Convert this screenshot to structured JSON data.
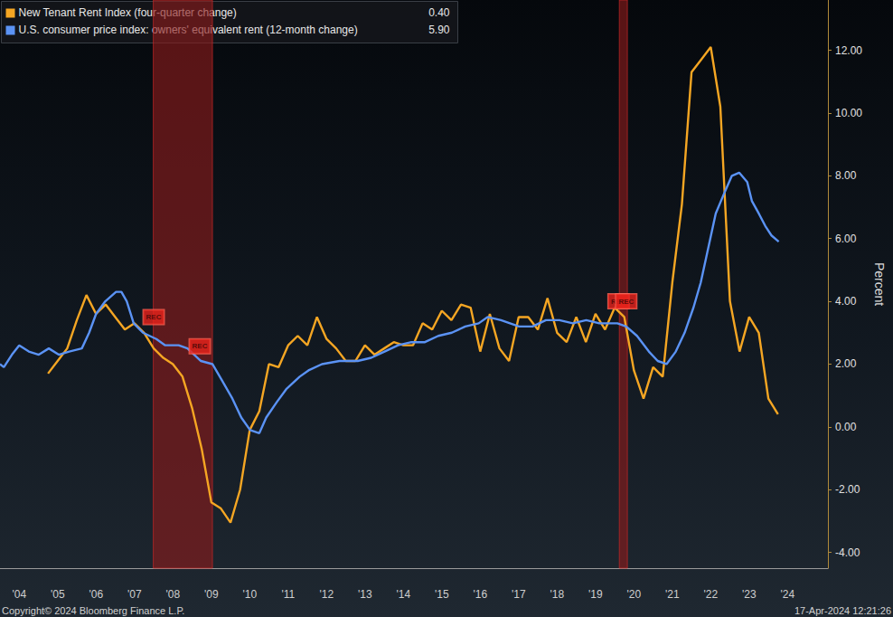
{
  "chart_data": {
    "type": "line",
    "series": [
      {
        "name": "New Tenant Rent Index (four-quarter change)",
        "color": "#f5a623",
        "legend_value": {
          "value": 0.4,
          "label": "0.40"
        },
        "x": [
          2005.25,
          2005.5,
          2005.75,
          2006.0,
          2006.25,
          2006.5,
          2006.75,
          2007.0,
          2007.25,
          2007.5,
          2007.75,
          2008.0,
          2008.25,
          2008.5,
          2008.75,
          2009.0,
          2009.25,
          2009.5,
          2009.75,
          2010.0,
          2010.25,
          2010.5,
          2010.75,
          2011.0,
          2011.25,
          2011.5,
          2011.75,
          2012.0,
          2012.25,
          2012.5,
          2012.75,
          2013.0,
          2013.25,
          2013.5,
          2013.75,
          2014.0,
          2014.25,
          2014.5,
          2014.75,
          2015.0,
          2015.25,
          2015.5,
          2015.75,
          2016.0,
          2016.25,
          2016.5,
          2016.75,
          2017.0,
          2017.25,
          2017.5,
          2017.75,
          2018.0,
          2018.25,
          2018.5,
          2018.75,
          2019.0,
          2019.25,
          2019.5,
          2019.75,
          2020.0,
          2020.25,
          2020.5,
          2020.75,
          2021.0,
          2021.25,
          2021.5,
          2021.75,
          2022.0,
          2022.25,
          2022.5,
          2022.75,
          2023.0,
          2023.25,
          2023.5,
          2023.75,
          2024.0,
          2024.25
        ],
        "values": [
          1.7,
          2.1,
          2.5,
          3.4,
          4.2,
          3.6,
          3.9,
          3.5,
          3.1,
          3.3,
          3.0,
          2.5,
          2.2,
          2.0,
          1.6,
          0.6,
          -0.7,
          -2.4,
          -2.6,
          -3.05,
          -2.0,
          -0.1,
          0.5,
          2.0,
          1.9,
          2.6,
          2.9,
          2.6,
          3.5,
          2.8,
          2.5,
          2.1,
          2.1,
          2.6,
          2.3,
          2.5,
          2.7,
          2.6,
          2.6,
          3.3,
          3.1,
          3.7,
          3.4,
          3.9,
          3.8,
          2.4,
          3.6,
          2.5,
          2.1,
          3.5,
          3.5,
          3.1,
          4.1,
          3.0,
          2.7,
          3.5,
          2.7,
          3.6,
          3.1,
          3.8,
          3.5,
          1.8,
          0.9,
          1.9,
          1.6,
          4.6,
          7.1,
          11.3,
          11.7,
          12.1,
          10.2,
          4.0,
          2.4,
          3.5,
          3.0,
          0.9,
          0.4
        ]
      },
      {
        "name": "U.S. consumer price index: owners' equivalent rent (12-month change)",
        "color": "#5b93f5",
        "legend_value": {
          "value": 5.9,
          "label": "5.90"
        },
        "x": [
          2004.0,
          2004.1,
          2004.31,
          2004.5,
          2004.75,
          2005.01,
          2005.27,
          2005.53,
          2005.8,
          2006.13,
          2006.32,
          2006.5,
          2006.74,
          2007.02,
          2007.16,
          2007.3,
          2007.48,
          2007.72,
          2008.07,
          2008.3,
          2008.65,
          2008.88,
          2009.23,
          2009.53,
          2009.77,
          2010.05,
          2010.28,
          2010.51,
          2010.75,
          2010.93,
          2011.21,
          2011.45,
          2011.8,
          2012.03,
          2012.38,
          2012.84,
          2013.31,
          2013.66,
          2014.01,
          2014.36,
          2014.71,
          2015.06,
          2015.41,
          2015.76,
          2016.11,
          2016.46,
          2016.69,
          2017.04,
          2017.51,
          2017.86,
          2018.21,
          2018.56,
          2018.91,
          2019.26,
          2019.6,
          2020.07,
          2020.3,
          2020.58,
          2020.89,
          2021.12,
          2021.35,
          2021.59,
          2021.82,
          2022.05,
          2022.24,
          2022.4,
          2022.63,
          2022.87,
          2023.05,
          2023.24,
          2023.45,
          2023.57,
          2023.75,
          2023.92,
          2024.08,
          2024.27
        ],
        "values": [
          2.0,
          1.9,
          2.3,
          2.6,
          2.4,
          2.3,
          2.5,
          2.3,
          2.4,
          2.5,
          3.0,
          3.6,
          4.0,
          4.3,
          4.3,
          4.0,
          3.3,
          3.0,
          2.8,
          2.6,
          2.6,
          2.5,
          2.1,
          2.0,
          1.5,
          0.9,
          0.3,
          -0.1,
          -0.2,
          0.3,
          0.8,
          1.2,
          1.6,
          1.8,
          2.0,
          2.1,
          2.1,
          2.2,
          2.4,
          2.6,
          2.7,
          2.7,
          2.9,
          3.0,
          3.2,
          3.3,
          3.5,
          3.4,
          3.2,
          3.2,
          3.4,
          3.4,
          3.3,
          3.4,
          3.3,
          3.3,
          3.2,
          2.9,
          2.4,
          2.1,
          2.0,
          2.4,
          3.0,
          3.8,
          4.6,
          5.5,
          6.8,
          7.5,
          8.0,
          8.1,
          7.8,
          7.2,
          6.8,
          6.4,
          6.1,
          5.9
        ]
      }
    ],
    "y_label": "Percent",
    "xlim": [
      2004.0,
      2025.55
    ],
    "xticks": [
      {
        "value": 2004.5,
        "label": "'04"
      },
      {
        "value": 2005.5,
        "label": "'05"
      },
      {
        "value": 2006.5,
        "label": "'06"
      },
      {
        "value": 2007.5,
        "label": "'07"
      },
      {
        "value": 2008.5,
        "label": "'08"
      },
      {
        "value": 2009.5,
        "label": "'09"
      },
      {
        "value": 2010.5,
        "label": "'10"
      },
      {
        "value": 2011.5,
        "label": "'11"
      },
      {
        "value": 2012.5,
        "label": "'12"
      },
      {
        "value": 2013.5,
        "label": "'13"
      },
      {
        "value": 2014.5,
        "label": "'14"
      },
      {
        "value": 2015.5,
        "label": "'15"
      },
      {
        "value": 2016.5,
        "label": "'16"
      },
      {
        "value": 2017.5,
        "label": "'17"
      },
      {
        "value": 2018.5,
        "label": "'18"
      },
      {
        "value": 2019.5,
        "label": "'19"
      },
      {
        "value": 2020.5,
        "label": "'20"
      },
      {
        "value": 2021.5,
        "label": "'21"
      },
      {
        "value": 2022.5,
        "label": "'22"
      },
      {
        "value": 2023.5,
        "label": "'23"
      },
      {
        "value": 2024.5,
        "label": "'24"
      }
    ],
    "ylim": [
      -4.5,
      13.6
    ],
    "yticks": [
      {
        "value": -4,
        "label": "-4.00"
      },
      {
        "value": -2,
        "label": "-2.00"
      },
      {
        "value": 0,
        "label": "0.00"
      },
      {
        "value": 2,
        "label": "2.00"
      },
      {
        "value": 4,
        "label": "4.00"
      },
      {
        "value": 6,
        "label": "6.00"
      },
      {
        "value": 8,
        "label": "8.00"
      },
      {
        "value": 10,
        "label": "10.00"
      },
      {
        "value": 12,
        "label": "12.00"
      }
    ],
    "grid": false,
    "recessions": [
      [
        2007.99,
        2009.53
      ],
      [
        2020.12,
        2020.33
      ]
    ],
    "annotations": [
      {
        "text": "REC",
        "x": 2008.0,
        "y": 3.5
      },
      {
        "text": "REC",
        "x": 2009.2,
        "y": 2.57
      },
      {
        "text": "REC",
        "x": 2020.1,
        "y": 4.0
      },
      {
        "text": "REC",
        "x": 2020.3,
        "y": 4.0
      }
    ],
    "footer": [
      "Copyright© 2024 Bloomberg Finance L.P.",
      "17-Apr-2024 12:21:26"
    ]
  }
}
